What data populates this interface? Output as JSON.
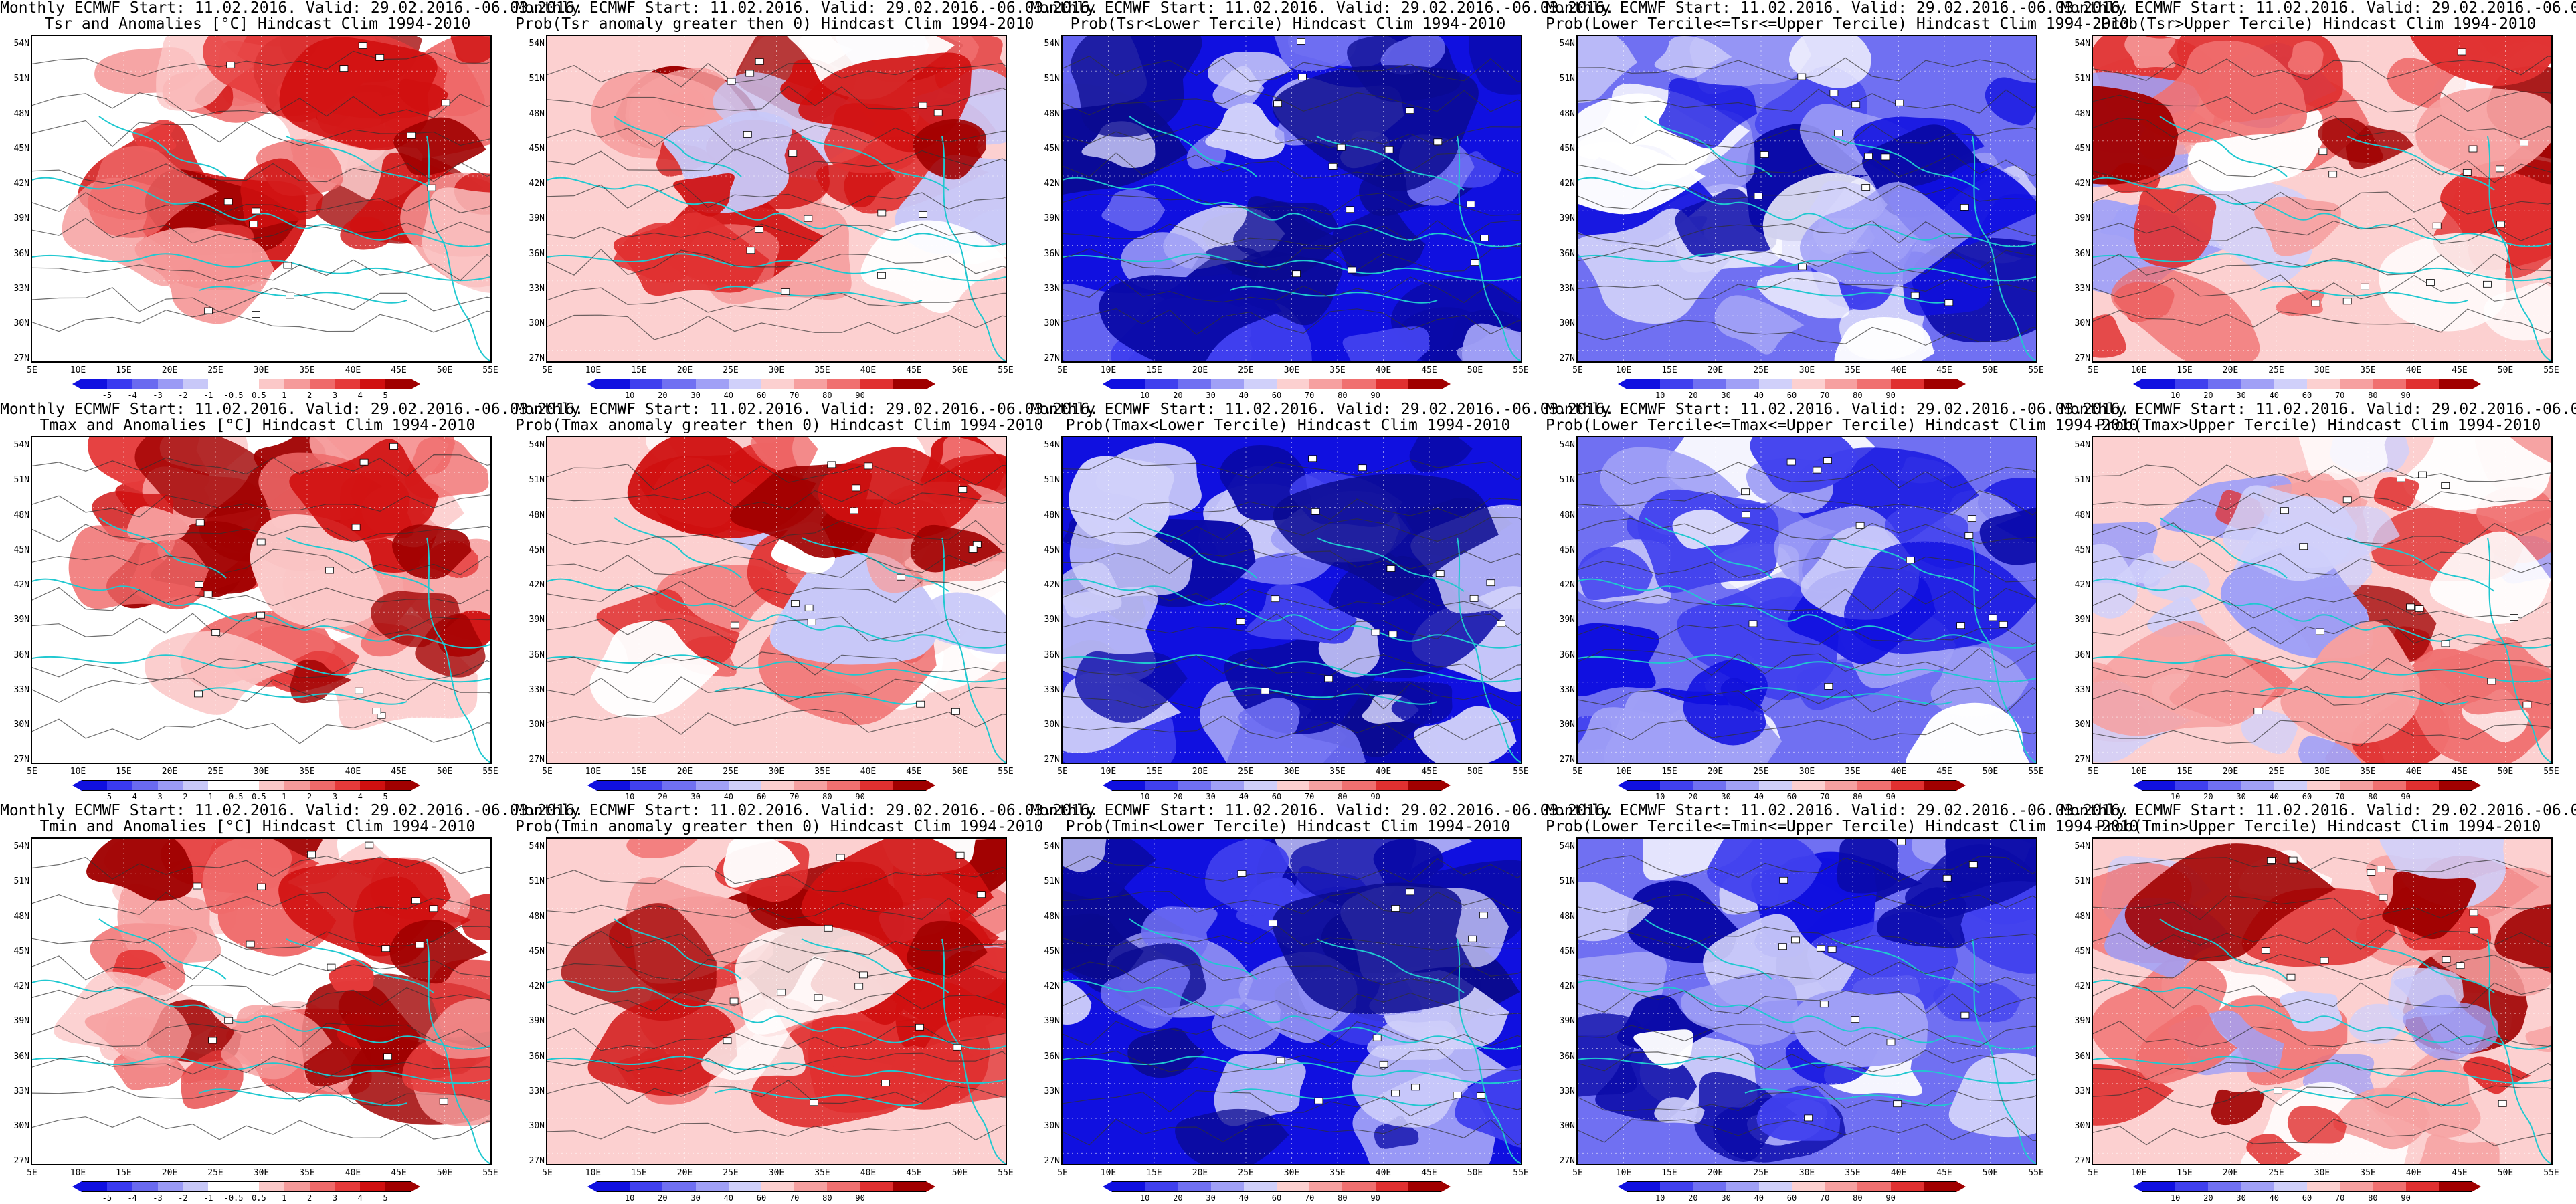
{
  "common": {
    "line1": "Monthly ECMWF Start: 11.02.2016. Valid: 29.02.2016.-06.03.2016.",
    "lat_labels": [
      "54N",
      "51N",
      "48N",
      "45N",
      "42N",
      "39N",
      "36N",
      "33N",
      "30N",
      "27N"
    ],
    "lon_labels": [
      "5E",
      "10E",
      "15E",
      "20E",
      "25E",
      "30E",
      "35E",
      "40E",
      "45E",
      "50E",
      "55E"
    ]
  },
  "anom_colorbar": {
    "colors": [
      "#1010e0",
      "#3a3af0",
      "#6a6af0",
      "#9a9af5",
      "#c8c8f8",
      "#ffffff",
      "#ffffff",
      "#fbc8c8",
      "#f59a9a",
      "#ef6a6a",
      "#e53a3a",
      "#d01010",
      "#a00000"
    ],
    "ticks": [
      "-5",
      "-4",
      "-3",
      "-2",
      "-1",
      "-0.5",
      "0.5",
      "1",
      "2",
      "3",
      "4",
      "5"
    ]
  },
  "prob_colorbar": {
    "colors": [
      "#1010e0",
      "#4040ee",
      "#7070f2",
      "#a0a0f6",
      "#d0d0fa",
      "#fcd0d0",
      "#f6a0a0",
      "#f07070",
      "#e03030",
      "#a00000"
    ],
    "ticks": [
      "10",
      "20",
      "30",
      "40",
      "60",
      "70",
      "80",
      "90"
    ]
  },
  "panels": [
    {
      "title2": "Tsr and Anomalies [°C] Hindcast Clim 1994-2010",
      "scheme": "anom_warm",
      "colorbar": "anom"
    },
    {
      "title2": "Prob(Tsr anomaly greater then 0) Hindcast Clim 1994-2010",
      "scheme": "prob_high",
      "colorbar": "prob"
    },
    {
      "title2": "Prob(Tsr<Lower Tercile) Hindcast Clim 1994-2010",
      "scheme": "blue_deep",
      "colorbar": "prob"
    },
    {
      "title2": "Prob(Lower Tercile<=Tsr<=Upper Tercile) Hindcast Clim 1994-2010",
      "scheme": "blue_light",
      "colorbar": "prob"
    },
    {
      "title2": "Prob(Tsr>Upper Tercile) Hindcast Clim 1994-2010",
      "scheme": "red_mixed",
      "colorbar": "prob"
    },
    {
      "title2": "Tmax and Anomalies [°C] Hindcast Clim 1994-2010",
      "scheme": "anom_warm",
      "colorbar": "anom"
    },
    {
      "title2": "Prob(Tmax anomaly greater then 0) Hindcast Clim 1994-2010",
      "scheme": "prob_high",
      "colorbar": "prob"
    },
    {
      "title2": "Prob(Tmax<Lower Tercile) Hindcast Clim 1994-2010",
      "scheme": "blue_deep",
      "colorbar": "prob"
    },
    {
      "title2": "Prob(Lower Tercile<=Tmax<=Upper Tercile) Hindcast Clim 1994-2010",
      "scheme": "blue_light",
      "colorbar": "prob"
    },
    {
      "title2": "Prob(Tmax>Upper Tercile) Hindcast Clim 1994-2010",
      "scheme": "red_mixed",
      "colorbar": "prob"
    },
    {
      "title2": "Tmin and Anomalies [°C] Hindcast Clim 1994-2010",
      "scheme": "anom_warm",
      "colorbar": "anom"
    },
    {
      "title2": "Prob(Tmin anomaly greater then 0) Hindcast Clim 1994-2010",
      "scheme": "prob_high",
      "colorbar": "prob"
    },
    {
      "title2": "Prob(Tmin<Lower Tercile) Hindcast Clim 1994-2010",
      "scheme": "blue_deep",
      "colorbar": "prob"
    },
    {
      "title2": "Prob(Lower Tercile<=Tmin<=Upper Tercile) Hindcast Clim 1994-2010",
      "scheme": "blue_light",
      "colorbar": "prob"
    },
    {
      "title2": "Prob(Tmin>Upper Tercile) Hindcast Clim 1994-2010",
      "scheme": "red_mixed",
      "colorbar": "prob"
    }
  ]
}
